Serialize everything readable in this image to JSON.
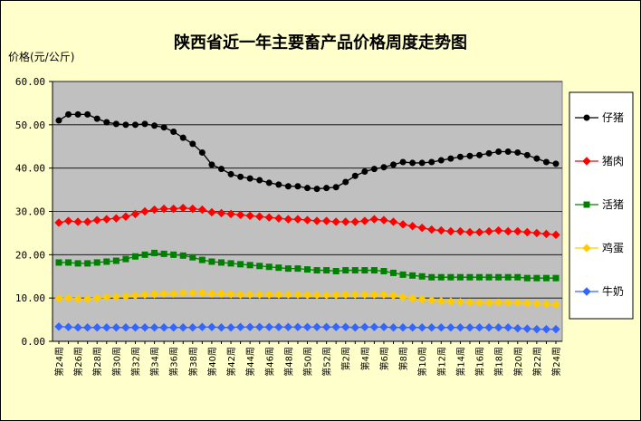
{
  "chart_data": {
    "type": "line",
    "title": "陕西省近一年主要畜产品价格周度走势图",
    "ylabel": "价格(元/公斤)",
    "xlabel": "",
    "ylim": [
      0,
      60
    ],
    "yticks": [
      "0.00",
      "10.00",
      "20.00",
      "30.00",
      "40.00",
      "50.00",
      "60.00"
    ],
    "grid": true,
    "legend_position": "right",
    "categories": [
      "第24周",
      "第25周",
      "第26周",
      "第27周",
      "第28周",
      "第29周",
      "第30周",
      "第31周",
      "第32周",
      "第33周",
      "第34周",
      "第35周",
      "第36周",
      "第37周",
      "第38周",
      "第39周",
      "第40周",
      "第41周",
      "第42周",
      "第43周",
      "第44周",
      "第45周",
      "第46周",
      "第47周",
      "第48周",
      "第49周",
      "第50周",
      "第51周",
      "第52周",
      "第1周",
      "第2周",
      "第3周",
      "第4周",
      "第5周",
      "第6周",
      "第7周",
      "第8周",
      "第9周",
      "第10周",
      "第11周",
      "第12周",
      "第13周",
      "第14周",
      "第15周",
      "第16周",
      "第17周",
      "第18周",
      "第19周",
      "第20周",
      "第21周",
      "第22周",
      "第23周",
      "第24周"
    ],
    "series": [
      {
        "name": "仔猪",
        "color": "#000000",
        "marker": "circle",
        "values": [
          51.0,
          52.4,
          52.4,
          52.4,
          51.4,
          50.6,
          50.2,
          50.0,
          50.0,
          50.2,
          49.8,
          49.4,
          48.4,
          47.0,
          45.6,
          43.6,
          40.8,
          39.8,
          38.6,
          38.0,
          37.6,
          37.2,
          36.6,
          36.2,
          35.8,
          35.8,
          35.4,
          35.2,
          35.4,
          35.6,
          36.8,
          38.2,
          39.2,
          39.8,
          40.2,
          40.8,
          41.4,
          41.2,
          41.2,
          41.4,
          41.8,
          42.2,
          42.6,
          42.8,
          43.0,
          43.4,
          43.8,
          43.8,
          43.6,
          43.0,
          42.2,
          41.4,
          41.0
        ]
      },
      {
        "name": "猪肉",
        "color": "#ff0000",
        "marker": "diamond",
        "values": [
          27.4,
          27.8,
          27.6,
          27.6,
          28.0,
          28.2,
          28.4,
          28.8,
          29.4,
          30.0,
          30.4,
          30.6,
          30.6,
          30.8,
          30.6,
          30.4,
          29.8,
          29.6,
          29.4,
          29.2,
          29.0,
          28.8,
          28.6,
          28.4,
          28.2,
          28.2,
          28.0,
          27.8,
          27.8,
          27.6,
          27.6,
          27.6,
          27.8,
          28.2,
          28.0,
          27.6,
          27.0,
          26.6,
          26.2,
          25.8,
          25.6,
          25.4,
          25.4,
          25.2,
          25.2,
          25.4,
          25.6,
          25.4,
          25.4,
          25.2,
          25.0,
          24.8,
          24.6
        ]
      },
      {
        "name": "活猪",
        "color": "#008000",
        "marker": "square",
        "values": [
          18.2,
          18.2,
          18.0,
          18.0,
          18.2,
          18.4,
          18.6,
          19.0,
          19.6,
          20.0,
          20.4,
          20.2,
          20.0,
          19.8,
          19.4,
          18.8,
          18.4,
          18.2,
          18.0,
          17.8,
          17.6,
          17.4,
          17.2,
          17.0,
          16.8,
          16.8,
          16.6,
          16.4,
          16.4,
          16.2,
          16.4,
          16.4,
          16.4,
          16.4,
          16.2,
          15.8,
          15.4,
          15.2,
          15.0,
          14.8,
          14.8,
          14.8,
          14.8,
          14.8,
          14.8,
          14.8,
          14.8,
          14.8,
          14.8,
          14.6,
          14.6,
          14.6,
          14.6
        ]
      },
      {
        "name": "鸡蛋",
        "color": "#ffcc00",
        "marker": "diamond",
        "values": [
          9.9,
          10.0,
          9.8,
          9.8,
          10.0,
          10.2,
          10.3,
          10.4,
          10.6,
          10.8,
          10.9,
          11.0,
          11.0,
          11.2,
          11.2,
          11.2,
          11.0,
          11.0,
          10.9,
          10.8,
          10.8,
          10.8,
          10.8,
          10.8,
          10.8,
          10.8,
          10.7,
          10.7,
          10.7,
          10.7,
          10.8,
          10.8,
          10.8,
          10.8,
          10.8,
          10.6,
          10.2,
          9.9,
          9.7,
          9.5,
          9.3,
          9.2,
          9.1,
          9.0,
          8.9,
          8.9,
          9.0,
          8.9,
          8.9,
          8.8,
          8.7,
          8.6,
          8.5
        ]
      },
      {
        "name": "牛奶",
        "color": "#3366ff",
        "marker": "diamond",
        "values": [
          3.4,
          3.3,
          3.2,
          3.2,
          3.2,
          3.2,
          3.2,
          3.2,
          3.2,
          3.2,
          3.2,
          3.2,
          3.2,
          3.2,
          3.2,
          3.3,
          3.3,
          3.2,
          3.2,
          3.3,
          3.3,
          3.3,
          3.3,
          3.3,
          3.3,
          3.3,
          3.3,
          3.3,
          3.3,
          3.3,
          3.3,
          3.2,
          3.3,
          3.3,
          3.3,
          3.2,
          3.2,
          3.2,
          3.2,
          3.2,
          3.2,
          3.2,
          3.2,
          3.2,
          3.2,
          3.2,
          3.2,
          3.2,
          3.0,
          2.9,
          2.8,
          2.8,
          2.8
        ]
      }
    ]
  }
}
